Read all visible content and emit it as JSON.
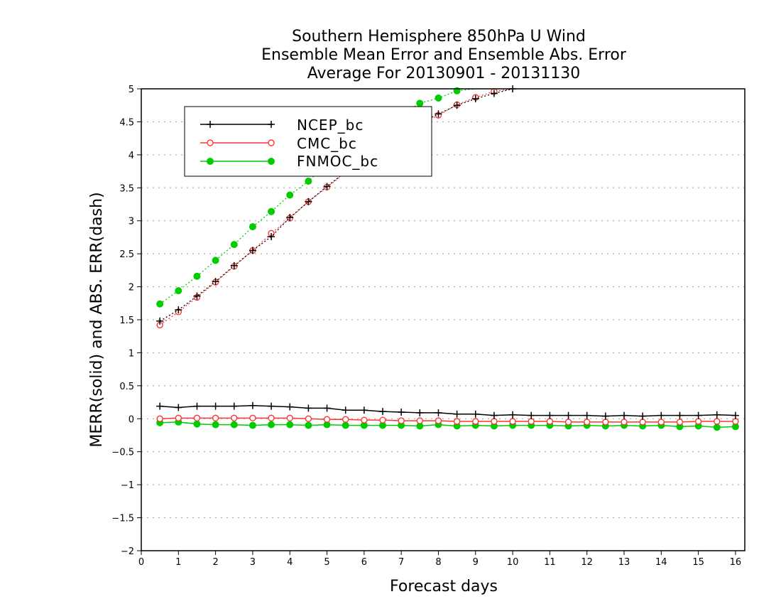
{
  "chart_data": {
    "type": "line",
    "title_lines": [
      "Southern Hemisphere 850hPa U Wind",
      "Ensemble Mean Error and Ensemble Abs. Error",
      "Average For 20130901 - 20131130"
    ],
    "xlabel": "Forecast days",
    "ylabel": "MERR(solid) and ABS. ERR(dash)",
    "xlim": [
      0,
      16.25
    ],
    "ylim": [
      -2,
      5
    ],
    "x_ticks": [
      0,
      1,
      2,
      3,
      4,
      5,
      6,
      7,
      8,
      9,
      10,
      11,
      12,
      13,
      14,
      15,
      16
    ],
    "y_ticks": [
      -2,
      -1.5,
      -1,
      -0.5,
      0,
      0.5,
      1,
      1.5,
      2,
      2.5,
      3,
      3.5,
      4,
      4.5,
      5
    ],
    "y_tick_labels": [
      "−2",
      "−1.5",
      "−1",
      "−0.5",
      "0",
      "0.5",
      "1",
      "1.5",
      "2",
      "2.5",
      "3",
      "3.5",
      "4",
      "4.5",
      "5"
    ],
    "grid": "horizontal-dotted",
    "legend_position": "top-left",
    "x": [
      0.5,
      1,
      1.5,
      2,
      2.5,
      3,
      3.5,
      4,
      4.5,
      5,
      5.5,
      6,
      6.5,
      7,
      7.5,
      8,
      8.5,
      9,
      9.5,
      10,
      10.5,
      11,
      11.5,
      12,
      12.5,
      13,
      13.5,
      14,
      14.5,
      15,
      15.5,
      16
    ],
    "series": [
      {
        "name": "NCEP_bc",
        "color": "#000000",
        "marker": "plus",
        "merr": [
          0.19,
          0.17,
          0.19,
          0.19,
          0.19,
          0.2,
          0.19,
          0.18,
          0.16,
          0.16,
          0.13,
          0.13,
          0.11,
          0.1,
          0.09,
          0.09,
          0.07,
          0.07,
          0.05,
          0.06,
          0.05,
          0.05,
          0.05,
          0.05,
          0.04,
          0.05,
          0.04,
          0.05,
          0.05,
          0.05,
          0.06,
          0.05
        ],
        "abs_err": [
          1.48,
          1.65,
          1.86,
          2.08,
          2.32,
          2.55,
          2.76,
          3.05,
          3.29,
          3.52,
          3.74,
          3.95,
          4.14,
          4.32,
          4.48,
          4.62,
          4.75,
          4.85,
          4.93,
          5.0
        ]
      },
      {
        "name": "CMC_bc",
        "color": "#ff3333",
        "marker": "open-circle",
        "merr": [
          0.0,
          0.01,
          0.01,
          0.01,
          0.01,
          0.01,
          0.01,
          0.01,
          0.0,
          -0.01,
          -0.01,
          -0.02,
          -0.02,
          -0.03,
          -0.03,
          -0.03,
          -0.04,
          -0.04,
          -0.04,
          -0.04,
          -0.04,
          -0.04,
          -0.05,
          -0.05,
          -0.05,
          -0.05,
          -0.05,
          -0.05,
          -0.05,
          -0.04,
          -0.04,
          -0.04
        ],
        "abs_err": [
          1.42,
          1.62,
          1.84,
          2.07,
          2.31,
          2.55,
          2.81,
          3.04,
          3.29,
          3.51,
          3.73,
          3.93,
          4.13,
          4.3,
          4.46,
          4.6,
          4.76,
          4.87,
          4.96,
          5.02
        ]
      },
      {
        "name": "FNMOC_bc",
        "color": "#00cc00",
        "marker": "filled-circle",
        "merr": [
          -0.06,
          -0.05,
          -0.08,
          -0.09,
          -0.09,
          -0.1,
          -0.09,
          -0.09,
          -0.1,
          -0.09,
          -0.1,
          -0.1,
          -0.1,
          -0.1,
          -0.11,
          -0.09,
          -0.11,
          -0.1,
          -0.11,
          -0.1,
          -0.1,
          -0.1,
          -0.11,
          -0.1,
          -0.11,
          -0.1,
          -0.11,
          -0.1,
          -0.12,
          -0.11,
          -0.13,
          -0.12
        ],
        "abs_err": [
          1.74,
          1.94,
          2.16,
          2.4,
          2.64,
          2.91,
          3.14,
          3.39,
          3.6,
          3.86,
          4.1,
          4.3,
          4.46,
          4.62,
          4.78,
          4.86,
          4.97,
          5.05
        ]
      }
    ]
  }
}
